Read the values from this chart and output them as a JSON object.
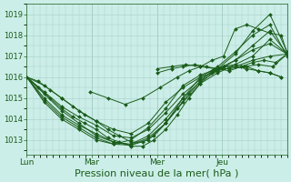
{
  "background_color": "#cceee8",
  "plot_bg_color": "#cceee8",
  "line_color": "#1a5c1a",
  "grid_color": "#a8cfc8",
  "axis_color": "#1a5c1a",
  "tick_color": "#1a5c1a",
  "text_color": "#1a5c1a",
  "xlabel": "Pression niveau de la mer( hPa )",
  "xlabel_fontsize": 8,
  "yticks": [
    1013,
    1014,
    1015,
    1016,
    1017,
    1018,
    1019
  ],
  "ylim": [
    1012.3,
    1019.5
  ],
  "xlim": [
    0,
    90
  ],
  "day_positions": [
    0,
    22.5,
    45,
    67.5
  ],
  "day_labels": [
    "Lun",
    "Mar",
    "Mer",
    "Jeu"
  ],
  "vline_positions": [
    22.5,
    45,
    67.5
  ],
  "series": [
    {
      "x": [
        0,
        4,
        8,
        12,
        16,
        20,
        24,
        28,
        32,
        36,
        40,
        44,
        48,
        52,
        56,
        60,
        64,
        68,
        72,
        76,
        80,
        84,
        88
      ],
      "y": [
        1016.0,
        1015.8,
        1015.4,
        1015.0,
        1014.6,
        1014.2,
        1013.9,
        1013.5,
        1013.2,
        1012.9,
        1012.9,
        1013.2,
        1013.8,
        1014.5,
        1015.2,
        1015.8,
        1016.3,
        1016.5,
        1016.6,
        1016.5,
        1016.3,
        1016.2,
        1016.0
      ]
    },
    {
      "x": [
        0,
        4,
        8,
        12,
        16,
        20,
        24,
        28,
        32,
        36,
        40,
        44,
        48,
        52,
        56,
        60,
        64,
        68,
        72,
        76,
        80,
        84,
        88
      ],
      "y": [
        1016.0,
        1015.5,
        1015.0,
        1014.5,
        1014.1,
        1013.8,
        1013.5,
        1013.1,
        1012.9,
        1012.7,
        1012.7,
        1013.0,
        1013.5,
        1014.2,
        1015.0,
        1015.7,
        1016.2,
        1016.5,
        1016.5,
        1016.4,
        1016.3,
        1016.2,
        1016.0
      ]
    },
    {
      "x": [
        0,
        6,
        12,
        18,
        24,
        30,
        36,
        42,
        48,
        54,
        60,
        66,
        72,
        78,
        84,
        90
      ],
      "y": [
        1016.0,
        1015.2,
        1014.4,
        1013.8,
        1013.2,
        1012.9,
        1012.75,
        1013.1,
        1013.8,
        1015.0,
        1016.0,
        1016.3,
        1016.5,
        1016.8,
        1017.0,
        1017.1
      ]
    },
    {
      "x": [
        0,
        6,
        12,
        18,
        24,
        30,
        36,
        42,
        48,
        54,
        60,
        66,
        72,
        78,
        84,
        90
      ],
      "y": [
        1016.0,
        1014.8,
        1014.0,
        1013.5,
        1013.0,
        1012.8,
        1013.0,
        1013.6,
        1014.5,
        1015.6,
        1016.1,
        1016.4,
        1016.8,
        1017.3,
        1017.6,
        1017.1
      ]
    },
    {
      "x": [
        0,
        6,
        12,
        18,
        24,
        30,
        36,
        42,
        48,
        54,
        60,
        66,
        72,
        78,
        84,
        90
      ],
      "y": [
        1016.0,
        1015.6,
        1015.0,
        1014.4,
        1013.9,
        1013.5,
        1013.3,
        1013.8,
        1014.8,
        1015.5,
        1016.0,
        1016.5,
        1017.2,
        1018.0,
        1018.5,
        1017.0
      ]
    },
    {
      "x": [
        0,
        6,
        12,
        18,
        24,
        30,
        36,
        42,
        48,
        54,
        60,
        66,
        72,
        78,
        84,
        90
      ],
      "y": [
        1016.0,
        1015.3,
        1014.6,
        1014.1,
        1013.7,
        1013.2,
        1013.1,
        1013.5,
        1014.3,
        1015.2,
        1015.9,
        1016.4,
        1017.1,
        1018.2,
        1019.0,
        1017.2
      ]
    },
    {
      "x": [
        0,
        6,
        12,
        18,
        24,
        30,
        36,
        42,
        48,
        54,
        60,
        66,
        72,
        78,
        84,
        90
      ],
      "y": [
        1016.0,
        1015.0,
        1014.2,
        1013.7,
        1013.3,
        1012.9,
        1012.8,
        1013.2,
        1014.0,
        1015.0,
        1015.8,
        1016.3,
        1016.8,
        1017.5,
        1018.2,
        1017.1
      ]
    },
    {
      "x": [
        0,
        6,
        12,
        18,
        24,
        30,
        36,
        42,
        48,
        54,
        60,
        66,
        72,
        78,
        84,
        90
      ],
      "y": [
        1016.0,
        1014.9,
        1014.1,
        1013.6,
        1013.1,
        1012.8,
        1012.75,
        1013.0,
        1013.8,
        1014.8,
        1015.7,
        1016.2,
        1016.6,
        1017.0,
        1017.8,
        1017.1
      ]
    },
    {
      "x": [
        22,
        28,
        34,
        40,
        46,
        52,
        56,
        60,
        64,
        68,
        72,
        76,
        80,
        84,
        88,
        90
      ],
      "y": [
        1015.3,
        1015.0,
        1014.7,
        1015.0,
        1015.5,
        1016.0,
        1016.3,
        1016.5,
        1016.8,
        1017.0,
        1018.3,
        1018.5,
        1018.3,
        1018.1,
        1018.0,
        1017.1
      ]
    },
    {
      "x": [
        45,
        50,
        55,
        60,
        65,
        70,
        75,
        80,
        85,
        90
      ],
      "y": [
        1016.4,
        1016.5,
        1016.6,
        1016.5,
        1016.4,
        1016.4,
        1016.5,
        1016.6,
        1016.5,
        1017.1
      ]
    },
    {
      "x": [
        45,
        50,
        54,
        58,
        62,
        66,
        70,
        74,
        78,
        82,
        86,
        90
      ],
      "y": [
        1016.2,
        1016.4,
        1016.5,
        1016.6,
        1016.5,
        1016.4,
        1016.3,
        1016.5,
        1016.7,
        1016.8,
        1016.7,
        1017.1
      ]
    }
  ]
}
